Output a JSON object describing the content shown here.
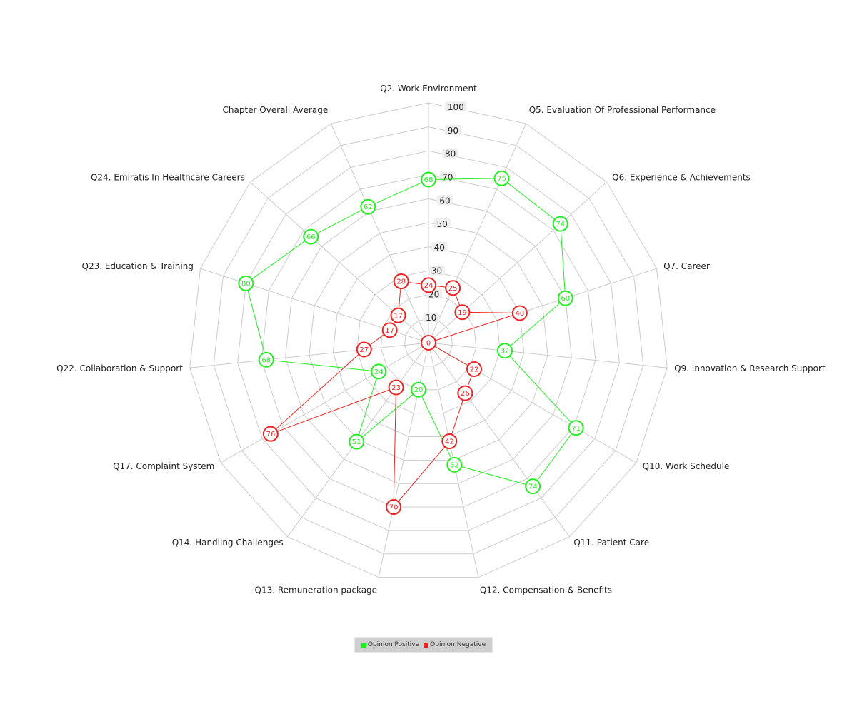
{
  "chart_data": {
    "type": "radar",
    "title": "",
    "categories": [
      "Q2. Work Environment",
      "Q5. Evaluation Of Professional Performance",
      "Q6. Experience & Achievements",
      "Q7. Career",
      "Q9. Innovation & Research Support",
      "Q10. Work Schedule",
      "Q11. Patient Care",
      "Q12. Compensation & Benefits",
      "Q13. Remuneration package",
      "Q14. Handling Challenges",
      "Q17. Complaint System",
      "Q22. Collaboration & Support",
      "Q23. Education & Training",
      "Q24. Emiratis In Healthcare Careers",
      "Chapter Overall Average"
    ],
    "radial_range": [
      0,
      100
    ],
    "ticks": [
      10,
      20,
      30,
      40,
      50,
      60,
      70,
      80,
      90,
      100
    ],
    "series": [
      {
        "name": "Opinion Positive",
        "color": "#22ee22",
        "values": [
          68,
          75,
          74,
          60,
          32,
          71,
          74,
          52,
          20,
          51,
          24,
          68,
          80,
          66,
          62
        ]
      },
      {
        "name": "Opinion Negative",
        "color": "#ee2222",
        "values": [
          24,
          25,
          19,
          40,
          0,
          22,
          26,
          42,
          70,
          23,
          76,
          27,
          17,
          17,
          28
        ]
      }
    ],
    "grid": true,
    "legend_position": "bottom-center"
  }
}
